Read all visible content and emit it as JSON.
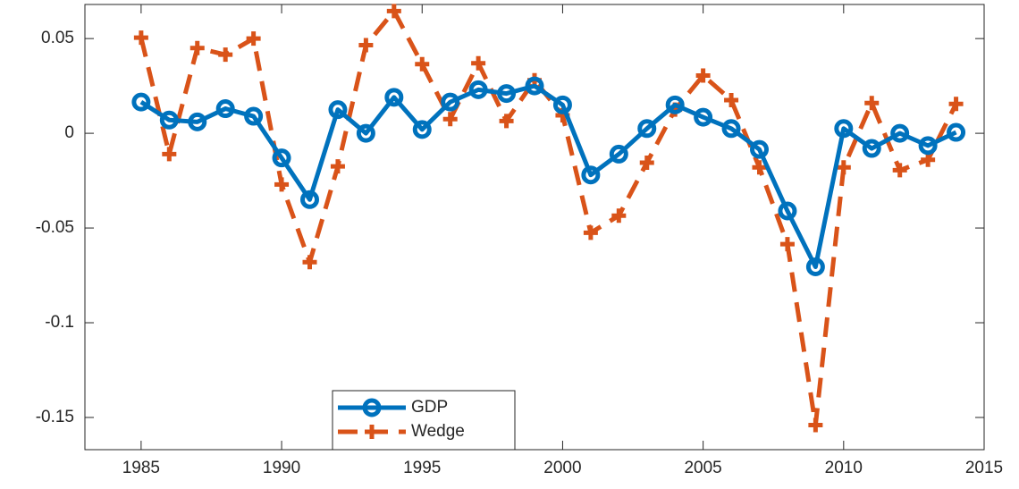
{
  "chart_data": {
    "type": "line",
    "x": [
      1985,
      1986,
      1987,
      1988,
      1989,
      1990,
      1991,
      1992,
      1993,
      1994,
      1995,
      1996,
      1997,
      1998,
      1999,
      2000,
      2001,
      2002,
      2003,
      2004,
      2005,
      2006,
      2007,
      2008,
      2009,
      2010,
      2011,
      2012,
      2013,
      2014
    ],
    "series": [
      {
        "name": "GDP",
        "color": "#0072bd",
        "marker": "circle",
        "dashed": false,
        "values": [
          0.0165,
          0.007,
          0.006,
          0.013,
          0.009,
          -0.013,
          -0.035,
          0.0125,
          0,
          0.019,
          0.002,
          0.0165,
          0.023,
          0.021,
          0.025,
          0.015,
          -0.022,
          -0.011,
          0.0025,
          0.015,
          0.0085,
          0.0025,
          -0.0085,
          -0.041,
          -0.0705,
          0.0025,
          -0.008,
          0,
          -0.0065,
          0.0005
        ]
      },
      {
        "name": "Wedge",
        "color": "#d95319",
        "marker": "plus",
        "dashed": true,
        "values": [
          0.0505,
          -0.011,
          0.045,
          0.0415,
          0.05,
          -0.027,
          -0.068,
          -0.0175,
          0.0465,
          0.0645,
          0.0365,
          0.0075,
          0.037,
          0.0065,
          0.028,
          0.0095,
          -0.0525,
          -0.0435,
          -0.0155,
          0.0125,
          0.0305,
          0.0175,
          -0.018,
          -0.0585,
          -0.154,
          -0.018,
          0.016,
          -0.0195,
          -0.014,
          0.0155
        ]
      }
    ],
    "xlim": [
      1983,
      2015
    ],
    "xticks": [
      1985,
      1990,
      1995,
      2000,
      2005,
      2010,
      2015
    ],
    "ylim": [
      -0.167,
      0.068
    ],
    "yticks": [
      -0.15,
      -0.1,
      -0.05,
      0,
      0.05
    ],
    "grid": false
  }
}
